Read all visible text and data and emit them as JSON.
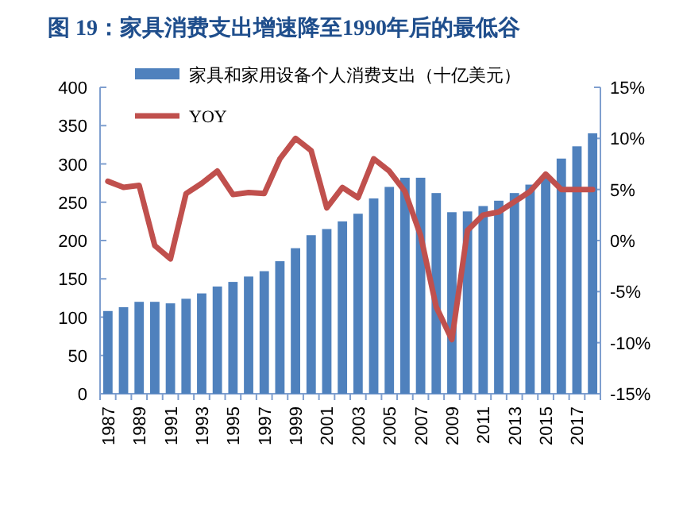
{
  "chart_data": {
    "type": "bar",
    "title": "图 19：家具消费支出增速降至1990年后的最低谷",
    "categories": [
      "1987",
      null,
      "1989",
      null,
      "1991",
      null,
      "1993",
      null,
      "1995",
      null,
      "1997",
      null,
      "1999",
      null,
      "2001",
      null,
      "2003",
      null,
      "2005",
      null,
      "2007",
      null,
      "2009",
      null,
      "2011",
      null,
      "2013",
      null,
      "2015",
      null,
      "2017",
      null
    ],
    "series": [
      {
        "name": "家具和家用设备个人消费支出（十亿美元）",
        "color": "#4f81bd",
        "values": [
          108,
          113,
          120,
          120,
          118,
          124,
          131,
          140,
          146,
          153,
          160,
          173,
          190,
          207,
          215,
          225,
          235,
          255,
          270,
          282,
          282,
          262,
          237,
          238,
          245,
          252,
          262,
          273,
          285,
          307,
          323,
          340
        ]
      },
      {
        "name": "YOY",
        "type": "line",
        "axis": "y2",
        "color": "#c0504d",
        "values": [
          5.8,
          5.2,
          5.4,
          -0.5,
          -1.8,
          4.6,
          5.6,
          6.8,
          4.5,
          4.7,
          4.6,
          8.0,
          10.0,
          8.8,
          3.2,
          5.2,
          4.2,
          8.0,
          6.8,
          4.8,
          0.5,
          -6.5,
          -9.7,
          1.0,
          2.5,
          2.8,
          3.8,
          4.8,
          6.5,
          5.0,
          5.0,
          5.0
        ]
      }
    ],
    "ylim": [
      0,
      400
    ],
    "yticks": [
      0,
      50,
      100,
      150,
      200,
      250,
      300,
      350,
      400
    ],
    "y2lim": [
      -15,
      15
    ],
    "y2ticks": [
      {
        "value": -15,
        "label": "-15%"
      },
      {
        "value": -10,
        "label": "-10%"
      },
      {
        "value": -5,
        "label": "-5%"
      },
      {
        "value": 0,
        "label": "0%"
      },
      {
        "value": 5,
        "label": "5%"
      },
      {
        "value": 10,
        "label": "10%"
      },
      {
        "value": 15,
        "label": "15%"
      }
    ],
    "grid": false,
    "legend": "top left"
  }
}
